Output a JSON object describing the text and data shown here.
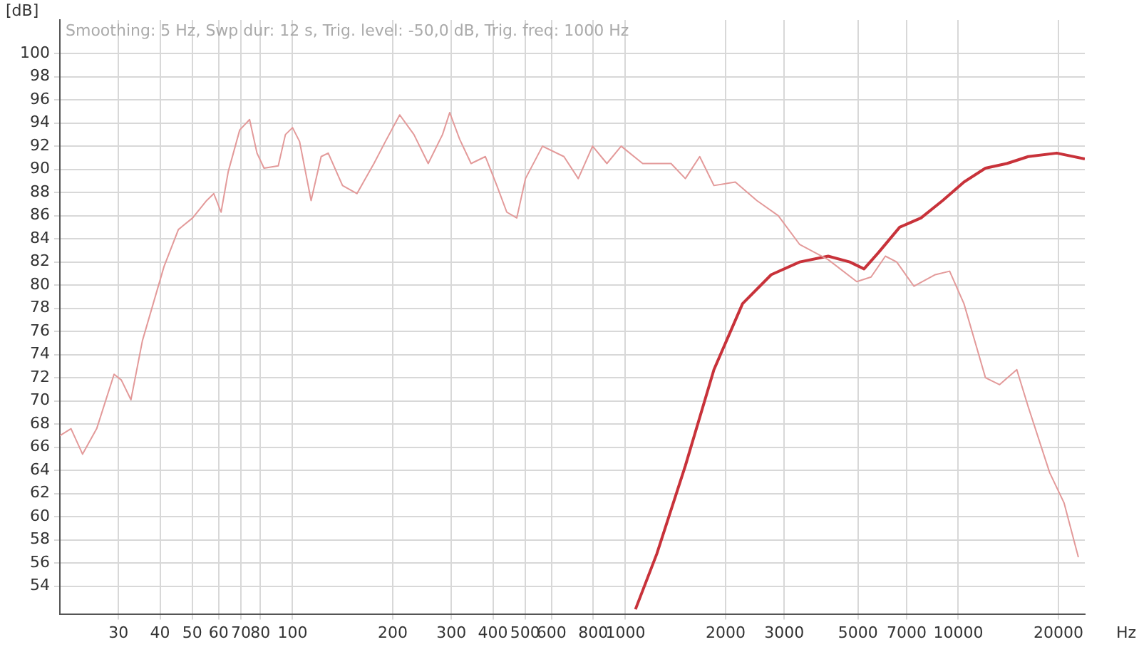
{
  "chart_data": {
    "type": "line",
    "xlabel": "Hz",
    "ylabel": "[dB]",
    "log": "x",
    "grid": true,
    "legend": false,
    "marker": "none",
    "line_style": "solid",
    "annotations": [
      "Smoothing: 5 Hz, Swp dur: 12 s, Trig. level: -50,0 dB, Trig. freq: 1000 Hz"
    ],
    "xlim": [
      20,
      24000
    ],
    "ylim": [
      51.6,
      102.9
    ],
    "xticks": [
      30,
      40,
      50,
      60,
      70,
      80,
      100,
      200,
      300,
      400,
      500,
      600,
      800,
      1000,
      2000,
      3000,
      5000,
      7000,
      10000,
      20000
    ],
    "yticks": [
      54,
      56,
      58,
      60,
      62,
      64,
      66,
      68,
      70,
      72,
      74,
      76,
      78,
      80,
      82,
      84,
      86,
      88,
      90,
      92,
      94,
      96,
      98,
      100
    ],
    "series": [
      {
        "color": "#e39a9a",
        "x": [
          20,
          21.6,
          23.4,
          25.8,
          29.1,
          30.6,
          32.7,
          35.4,
          41.1,
          45.4,
          50.1,
          55.2,
          58,
          61,
          64.1,
          69.4,
          74.3,
          78.2,
          82.1,
          90.6,
          95.2,
          100,
          105,
          113.7,
          121.9,
          128,
          141.3,
          156.1,
          175.6,
          190.1,
          209.9,
          231.6,
          255.6,
          282.2,
          296.6,
          317.7,
          343.9,
          379.6,
          410.9,
          440.2,
          471.7,
          501,
          563.6,
          653.6,
          721.8,
          796.9,
          879.8,
          971.2,
          1127,
          1371,
          1514,
          1672,
          1845,
          2139,
          2483,
          2878,
          3340,
          4066,
          4955,
          5470,
          6040,
          6531,
          7361,
          8531,
          9420,
          10400,
          12070,
          13310,
          14990,
          16220,
          18820,
          20780,
          22950
        ],
        "values": [
          67,
          67.6,
          65.4,
          67.6,
          72.3,
          71.8,
          70.1,
          75.2,
          81.6,
          84.8,
          85.8,
          87.3,
          87.9,
          86.3,
          89.8,
          93.4,
          94.3,
          91.4,
          90.1,
          90.3,
          93,
          93.6,
          92.4,
          87.3,
          91.1,
          91.4,
          88.6,
          87.9,
          90.5,
          92.4,
          94.7,
          93,
          90.5,
          93,
          94.9,
          92.6,
          90.5,
          91.1,
          88.6,
          86.3,
          85.8,
          89.2,
          92,
          91.1,
          89.2,
          92,
          90.5,
          92,
          90.5,
          90.5,
          89.2,
          91.1,
          88.6,
          88.9,
          87.3,
          86,
          83.5,
          82.2,
          80.3,
          80.7,
          82.5,
          82,
          79.9,
          80.9,
          81.2,
          78.4,
          72,
          71.4,
          72.7,
          69.5,
          63.8,
          61.2,
          56.5
        ]
      },
      {
        "color": "#c8323a",
        "x": [
          1072,
          1243,
          1514,
          1845,
          2249,
          2742,
          3340,
          4066,
          4720,
          5210,
          5754,
          6667,
          7727,
          8974,
          10400,
          12070,
          13990,
          16220,
          19770,
          24000
        ],
        "values": [
          52,
          56.8,
          64.4,
          72.7,
          78.4,
          80.9,
          82,
          82.5,
          82,
          81.4,
          82.8,
          85,
          85.8,
          87.3,
          88.9,
          90.1,
          90.5,
          91.1,
          91.4,
          90.9
        ]
      }
    ]
  }
}
